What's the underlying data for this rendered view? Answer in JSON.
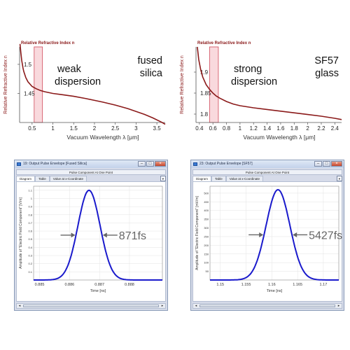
{
  "chart_data": [
    {
      "type": "line",
      "title": "Relative Refractive Index n",
      "xlabel": "Vacuum Wavelength λ [μm]",
      "ylabel": "Relative Refractive Index n",
      "xlim": [
        0.2,
        3.7
      ],
      "ylim": [
        1.4,
        1.53
      ],
      "xticks": [
        "0.5",
        "1",
        "1.5",
        "2",
        "2.5",
        "3",
        "3.5"
      ],
      "yticks": [
        "1.45",
        "1.5"
      ],
      "ytick_values": [
        1.45,
        1.5
      ],
      "xtick_values": [
        0.5,
        1,
        1.5,
        2,
        2.5,
        3,
        3.5
      ],
      "highlight_band": [
        0.55,
        0.75
      ],
      "annotation_left": [
        "weak",
        "dispersion"
      ],
      "annotation_right": [
        "fused",
        "silica"
      ],
      "line_color": "#8b1a1a",
      "x": [
        0.21,
        0.23,
        0.25,
        0.28,
        0.3,
        0.35,
        0.4,
        0.5,
        0.6,
        0.7,
        0.8,
        1.0,
        1.2,
        1.5,
        1.8,
        2.0,
        2.2,
        2.5,
        2.8,
        3.0,
        3.2,
        3.4,
        3.6,
        3.7
      ],
      "y": [
        1.535,
        1.52,
        1.507,
        1.494,
        1.488,
        1.477,
        1.47,
        1.462,
        1.458,
        1.455,
        1.453,
        1.45,
        1.448,
        1.445,
        1.441,
        1.438,
        1.435,
        1.43,
        1.424,
        1.419,
        1.414,
        1.408,
        1.401,
        1.397
      ]
    },
    {
      "type": "line",
      "title": "Relative Refractive Index n",
      "xlabel": "Vacuum Wavelength λ [μm]",
      "ylabel": "Relative Refractive Index n",
      "xlim": [
        0.35,
        2.5
      ],
      "ylim": [
        1.78,
        1.96
      ],
      "xticks": [
        "0.4",
        "0.6",
        "0.8",
        "1",
        "1.2",
        "1.4",
        "1.6",
        "1.8",
        "2",
        "2.2",
        "2.4"
      ],
      "xtick_values": [
        0.4,
        0.6,
        0.8,
        1.0,
        1.2,
        1.4,
        1.6,
        1.8,
        2.0,
        2.2,
        2.4
      ],
      "yticks": [
        "1.8",
        "1.85",
        "1.9"
      ],
      "ytick_values": [
        1.8,
        1.85,
        1.9
      ],
      "highlight_band": [
        0.55,
        0.68
      ],
      "annotation_left": [
        "strong",
        "dispersion"
      ],
      "annotation_right": [
        "SF57",
        "glass"
      ],
      "line_color": "#8b1a1a",
      "x": [
        0.37,
        0.39,
        0.42,
        0.45,
        0.5,
        0.55,
        0.6,
        0.65,
        0.7,
        0.8,
        0.9,
        1.0,
        1.2,
        1.4,
        1.6,
        1.8,
        2.0,
        2.2,
        2.4,
        2.5
      ],
      "y": [
        1.96,
        1.93,
        1.905,
        1.888,
        1.87,
        1.859,
        1.85,
        1.843,
        1.838,
        1.83,
        1.824,
        1.82,
        1.815,
        1.811,
        1.807,
        1.803,
        1.799,
        1.795,
        1.79,
        1.787
      ]
    },
    {
      "type": "line",
      "window_title": "19: Output Pulse Envelope [Fused Silica]",
      "subtitle": "Pulse Component At One Point",
      "tabs": [
        "Diagram",
        "Table",
        "Value at x-Coordinate"
      ],
      "xlabel": "Time [ns]",
      "ylabel": "Amplitude of \"Electric Field Component\" [V/m]",
      "xlim": [
        0.8848,
        0.8891
      ],
      "ylim": [
        0,
        1.15
      ],
      "xticks": [
        "0.885",
        "0.886",
        "0.887",
        "0.888"
      ],
      "xtick_values": [
        0.885,
        0.886,
        0.887,
        0.888
      ],
      "yticks": [
        "0.1",
        "0.2",
        "0.3",
        "0.4",
        "0.5",
        "0.6",
        "0.7",
        "0.8",
        "0.9",
        "1",
        "1.1"
      ],
      "ytick_values": [
        0.1,
        0.2,
        0.3,
        0.4,
        0.5,
        0.6,
        0.7,
        0.8,
        0.9,
        1.0,
        1.1
      ],
      "peak_center": 0.88665,
      "fwhm": 0.000871,
      "peak_amplitude": 1.1,
      "fwhm_label": "871fs",
      "line_color": "#1a1acc"
    },
    {
      "type": "line",
      "window_title": "23: Output Pulse Envelope [SF57]",
      "subtitle": "Pulse Component At One Point",
      "tabs": [
        "Diagram",
        "Table",
        "Value at x-Coordinate"
      ],
      "xlabel": "Time [ns]",
      "ylabel": "Amplitude of \"Electric Field Component\" [mV/m]",
      "xlim": [
        1.148,
        1.173
      ],
      "ylim": [
        0,
        540
      ],
      "xticks": [
        "1.15",
        "1.155",
        "1.16",
        "1.165",
        "1.17"
      ],
      "xtick_values": [
        1.15,
        1.155,
        1.16,
        1.165,
        1.17
      ],
      "yticks": [
        "50",
        "100",
        "150",
        "200",
        "250",
        "300",
        "350",
        "400",
        "450",
        "500"
      ],
      "ytick_values": [
        50,
        100,
        150,
        200,
        250,
        300,
        350,
        400,
        450,
        500
      ],
      "peak_center": 1.1612,
      "fwhm": 0.005427,
      "peak_amplitude": 520,
      "fwhm_label": "5427fs",
      "line_color": "#1a1acc"
    }
  ]
}
